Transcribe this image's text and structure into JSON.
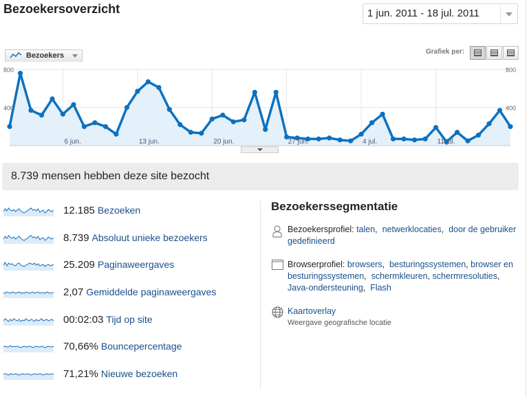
{
  "header": {
    "title": "Bezoekersoverzicht",
    "date_range": "1 jun. 2011 - 18 jul. 2011"
  },
  "chart_controls": {
    "metric_selector": "Bezoekers",
    "graph_by_label": "Grafiek per:",
    "graph_by_options": [
      "day-view-icon",
      "week-view-icon",
      "month-view-icon"
    ],
    "active_option": 0
  },
  "chart_data": {
    "type": "area",
    "title": "",
    "ylim": [
      0,
      800
    ],
    "y_ticks_left": [
      "800",
      "400"
    ],
    "y_ticks_right": [
      "800",
      "400"
    ],
    "x_tick_labels": [
      "6 jun.",
      "13 jun.",
      "20 jun.",
      "27 jun.",
      "4 jul.",
      "11 jul."
    ],
    "x_tick_days": [
      5,
      12,
      19,
      26,
      33,
      40
    ],
    "series": [
      {
        "name": "Bezoekers",
        "color": "#0b71c0",
        "values": [
          200,
          760,
          370,
          320,
          490,
          330,
          430,
          200,
          240,
          200,
          120,
          400,
          570,
          670,
          610,
          380,
          220,
          140,
          130,
          280,
          320,
          250,
          270,
          560,
          170,
          560,
          90,
          80,
          70,
          70,
          80,
          60,
          50,
          120,
          240,
          330,
          70,
          70,
          60,
          70,
          190,
          40,
          140,
          50,
          110,
          230,
          370,
          200
        ]
      }
    ]
  },
  "summary": {
    "text": "8.739 mensen hebben deze site bezocht"
  },
  "metrics": [
    {
      "value": "12.185",
      "label": "Bezoeken"
    },
    {
      "value": "8.739",
      "label": "Absoluut unieke bezoekers"
    },
    {
      "value": "25.209",
      "label": "Paginaweergaves"
    },
    {
      "value": "2,07",
      "label": "Gemiddelde paginaweergaves"
    },
    {
      "value": "00:02:03",
      "label": "Tijd op site"
    },
    {
      "value": "70,66%",
      "label": "Bouncepercentage"
    },
    {
      "value": "71,21%",
      "label": "Nieuwe bezoeken"
    }
  ],
  "segmentation": {
    "title": "Bezoekerssegmentatie",
    "visitor_profile": {
      "label": "Bezoekersprofiel:",
      "links": [
        "talen",
        "netwerklocaties",
        "door de gebruiker gedefinieerd"
      ]
    },
    "browser_profile": {
      "label": "Browserprofiel:",
      "links": [
        "browsers",
        "besturingssystemen",
        "browser en besturingssystemen",
        "schermkleuren",
        "schermresoluties",
        "Java-ondersteuning",
        "Flash"
      ]
    },
    "map_overlay": {
      "link": "Kaartoverlay",
      "subtitle": "Weergave geografische locatie"
    }
  }
}
